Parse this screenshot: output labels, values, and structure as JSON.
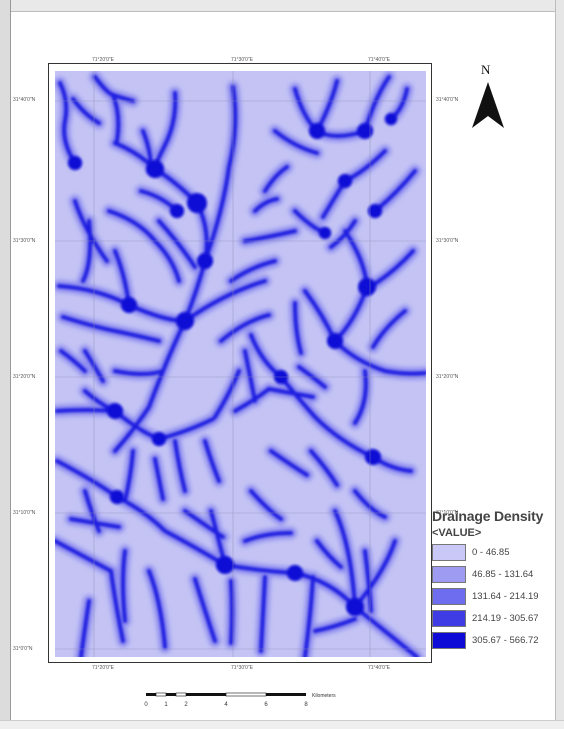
{
  "map": {
    "north_label": "N",
    "top_coords": [
      "71°20'0\"E",
      "71°30'0\"E",
      "71°40'0\"E"
    ],
    "bottom_coords": [
      "71°20'0\"E",
      "71°30'0\"E",
      "71°40'0\"E"
    ],
    "left_coords": [
      "31°40'0\"N",
      "31°30'0\"N",
      "31°20'0\"N",
      "31°10'0\"N",
      "31°0'0\"N"
    ],
    "right_coords": [
      "31°40'0\"N",
      "31°30'0\"N",
      "31°20'0\"N",
      "31°10'0\"N"
    ],
    "background_color": "#c4c3f4",
    "stream_outer_color": "#8f8ef0",
    "stream_inner_color": "#1f1ae0"
  },
  "legend": {
    "title": "Drainage Density",
    "subtitle": "<VALUE>",
    "classes": [
      {
        "label": "0 - 46.85",
        "color": "#c9c8f7"
      },
      {
        "label": "46.85 - 131.64",
        "color": "#9d9cf2"
      },
      {
        "label": "131.64 - 214.19",
        "color": "#6f6def"
      },
      {
        "label": "214.19 - 305.67",
        "color": "#3f3ce6"
      },
      {
        "label": "305.67 - 566.72",
        "color": "#0f0bd6"
      }
    ]
  },
  "scale_bar": {
    "ticks": [
      "0",
      "1",
      "2",
      "4",
      "6",
      "8"
    ],
    "unit": "Kilometers"
  }
}
